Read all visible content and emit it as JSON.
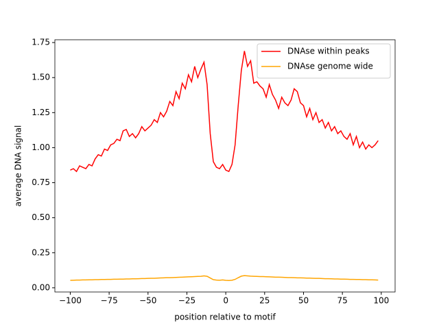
{
  "chart_data": {
    "type": "line",
    "xlabel": "position relative to motif",
    "ylabel": "average DNA signal",
    "x": [
      -100,
      -98,
      -96,
      -94,
      -92,
      -90,
      -88,
      -86,
      -84,
      -82,
      -80,
      -78,
      -76,
      -74,
      -72,
      -70,
      -68,
      -66,
      -64,
      -62,
      -60,
      -58,
      -56,
      -54,
      -52,
      -50,
      -48,
      -46,
      -44,
      -42,
      -40,
      -38,
      -36,
      -34,
      -32,
      -30,
      -28,
      -26,
      -24,
      -22,
      -20,
      -18,
      -16,
      -14,
      -12,
      -10,
      -8,
      -6,
      -4,
      -2,
      0,
      2,
      4,
      6,
      8,
      10,
      12,
      14,
      16,
      18,
      20,
      22,
      24,
      26,
      28,
      30,
      32,
      34,
      36,
      38,
      40,
      42,
      44,
      46,
      48,
      50,
      52,
      54,
      56,
      58,
      60,
      62,
      64,
      66,
      68,
      70,
      72,
      74,
      76,
      78,
      80,
      82,
      84,
      86,
      88,
      90,
      92,
      94,
      96,
      98
    ],
    "series": [
      {
        "name": "DNAse within peaks",
        "color": "#ff0000",
        "values": [
          0.84,
          0.85,
          0.83,
          0.87,
          0.86,
          0.85,
          0.88,
          0.87,
          0.92,
          0.95,
          0.94,
          0.99,
          0.98,
          1.02,
          1.03,
          1.06,
          1.05,
          1.12,
          1.13,
          1.08,
          1.1,
          1.07,
          1.1,
          1.15,
          1.12,
          1.14,
          1.16,
          1.2,
          1.18,
          1.25,
          1.22,
          1.26,
          1.33,
          1.3,
          1.4,
          1.35,
          1.46,
          1.42,
          1.52,
          1.47,
          1.58,
          1.5,
          1.56,
          1.61,
          1.45,
          1.1,
          0.9,
          0.86,
          0.85,
          0.88,
          0.84,
          0.83,
          0.88,
          1.02,
          1.3,
          1.55,
          1.69,
          1.58,
          1.62,
          1.46,
          1.47,
          1.44,
          1.42,
          1.36,
          1.45,
          1.38,
          1.34,
          1.28,
          1.36,
          1.32,
          1.3,
          1.34,
          1.42,
          1.4,
          1.32,
          1.3,
          1.22,
          1.28,
          1.2,
          1.25,
          1.18,
          1.2,
          1.14,
          1.18,
          1.12,
          1.15,
          1.1,
          1.12,
          1.08,
          1.06,
          1.1,
          1.02,
          1.08,
          1.0,
          1.04,
          0.99,
          1.02,
          1.0,
          1.02,
          1.05
        ]
      },
      {
        "name": "DNAse genome wide",
        "color": "#ffa500",
        "values": [
          0.053,
          0.054,
          0.055,
          0.055,
          0.056,
          0.056,
          0.057,
          0.057,
          0.058,
          0.058,
          0.059,
          0.059,
          0.06,
          0.06,
          0.061,
          0.061,
          0.062,
          0.062,
          0.063,
          0.063,
          0.064,
          0.064,
          0.065,
          0.066,
          0.066,
          0.067,
          0.068,
          0.068,
          0.069,
          0.07,
          0.071,
          0.072,
          0.072,
          0.073,
          0.074,
          0.075,
          0.076,
          0.077,
          0.078,
          0.079,
          0.08,
          0.081,
          0.082,
          0.085,
          0.082,
          0.07,
          0.058,
          0.055,
          0.054,
          0.056,
          0.053,
          0.052,
          0.054,
          0.06,
          0.072,
          0.083,
          0.087,
          0.085,
          0.083,
          0.082,
          0.081,
          0.08,
          0.08,
          0.079,
          0.078,
          0.077,
          0.076,
          0.076,
          0.075,
          0.074,
          0.073,
          0.073,
          0.072,
          0.071,
          0.071,
          0.07,
          0.069,
          0.069,
          0.068,
          0.067,
          0.067,
          0.066,
          0.065,
          0.065,
          0.064,
          0.063,
          0.063,
          0.062,
          0.062,
          0.061,
          0.06,
          0.06,
          0.059,
          0.059,
          0.058,
          0.058,
          0.057,
          0.057,
          0.056,
          0.055
        ]
      }
    ],
    "xlim": [
      -109.9,
      108.9
    ],
    "ylim": [
      -0.03,
      1.77
    ],
    "xticks": [
      {
        "value": -100,
        "label": "−100"
      },
      {
        "value": -75,
        "label": "−75"
      },
      {
        "value": -50,
        "label": "−50"
      },
      {
        "value": -25,
        "label": "−25"
      },
      0,
      25,
      50,
      75,
      100
    ],
    "yticks": [
      {
        "value": 0,
        "label": "0.00"
      },
      {
        "value": 0.25,
        "label": "0.25"
      },
      {
        "value": 0.5,
        "label": "0.50"
      },
      {
        "value": 0.75,
        "label": "0.75"
      },
      {
        "value": 1,
        "label": "1.00"
      },
      {
        "value": 1.25,
        "label": "1.25"
      },
      {
        "value": 1.5,
        "label": "1.50"
      },
      {
        "value": 1.75,
        "label": "1.75"
      }
    ],
    "legend": "upper right"
  }
}
